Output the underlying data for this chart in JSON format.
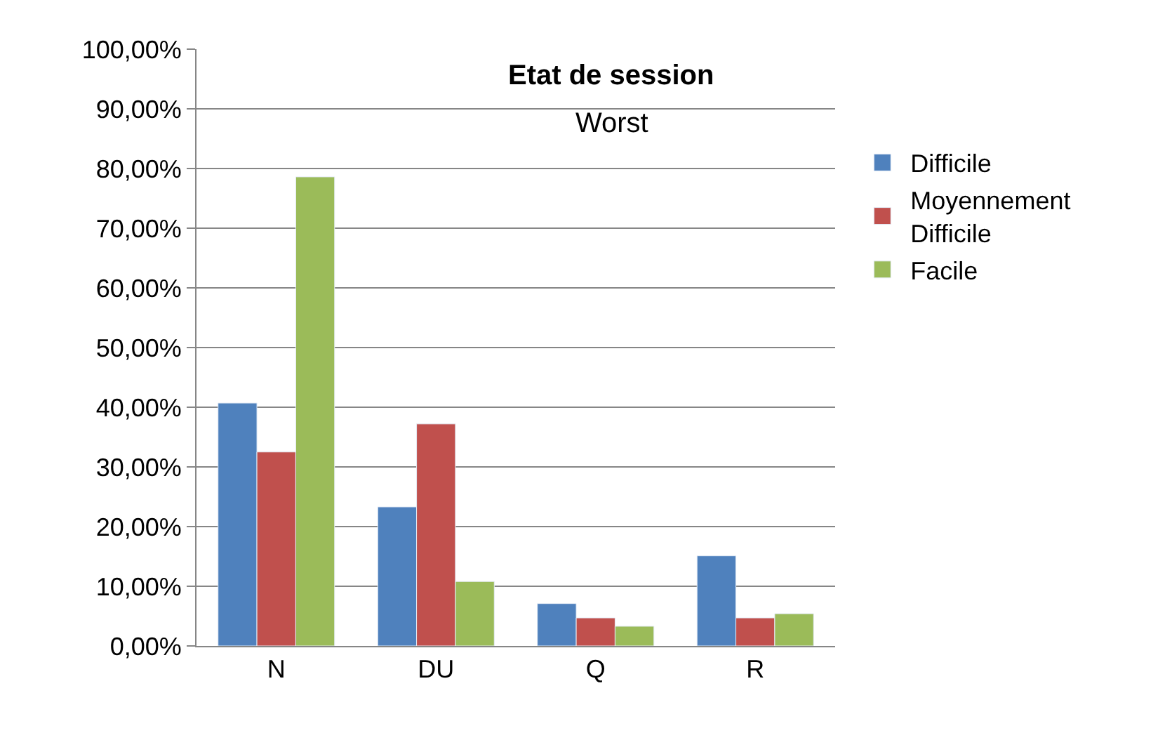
{
  "chart_data": {
    "type": "bar",
    "title": "Etat de session",
    "subtitle": "Worst",
    "categories": [
      "N",
      "DU",
      "Q",
      "R"
    ],
    "series": [
      {
        "name": "Difficile",
        "color": "#4f81bd",
        "values": [
          40.7,
          23.3,
          7.1,
          15.1
        ]
      },
      {
        "name": "Moyennement Difficile",
        "color": "#c0504d",
        "values": [
          32.5,
          37.2,
          4.7,
          4.7
        ]
      },
      {
        "name": "Facile",
        "color": "#9bbb59",
        "values": [
          78.6,
          10.8,
          3.3,
          5.4
        ]
      }
    ],
    "ylim": [
      0,
      100
    ],
    "yticks": [
      {
        "value": 0,
        "label": "0,00%"
      },
      {
        "value": 10,
        "label": "10,00%"
      },
      {
        "value": 20,
        "label": "20,00%"
      },
      {
        "value": 30,
        "label": "30,00%"
      },
      {
        "value": 40,
        "label": "40,00%"
      },
      {
        "value": 50,
        "label": "50,00%"
      },
      {
        "value": 60,
        "label": "60,00%"
      },
      {
        "value": 70,
        "label": "70,00%"
      },
      {
        "value": 80,
        "label": "80,00%"
      },
      {
        "value": 90,
        "label": "90,00%"
      },
      {
        "value": 100,
        "label": "100,00%"
      }
    ],
    "grid": "y",
    "legend": "right"
  }
}
